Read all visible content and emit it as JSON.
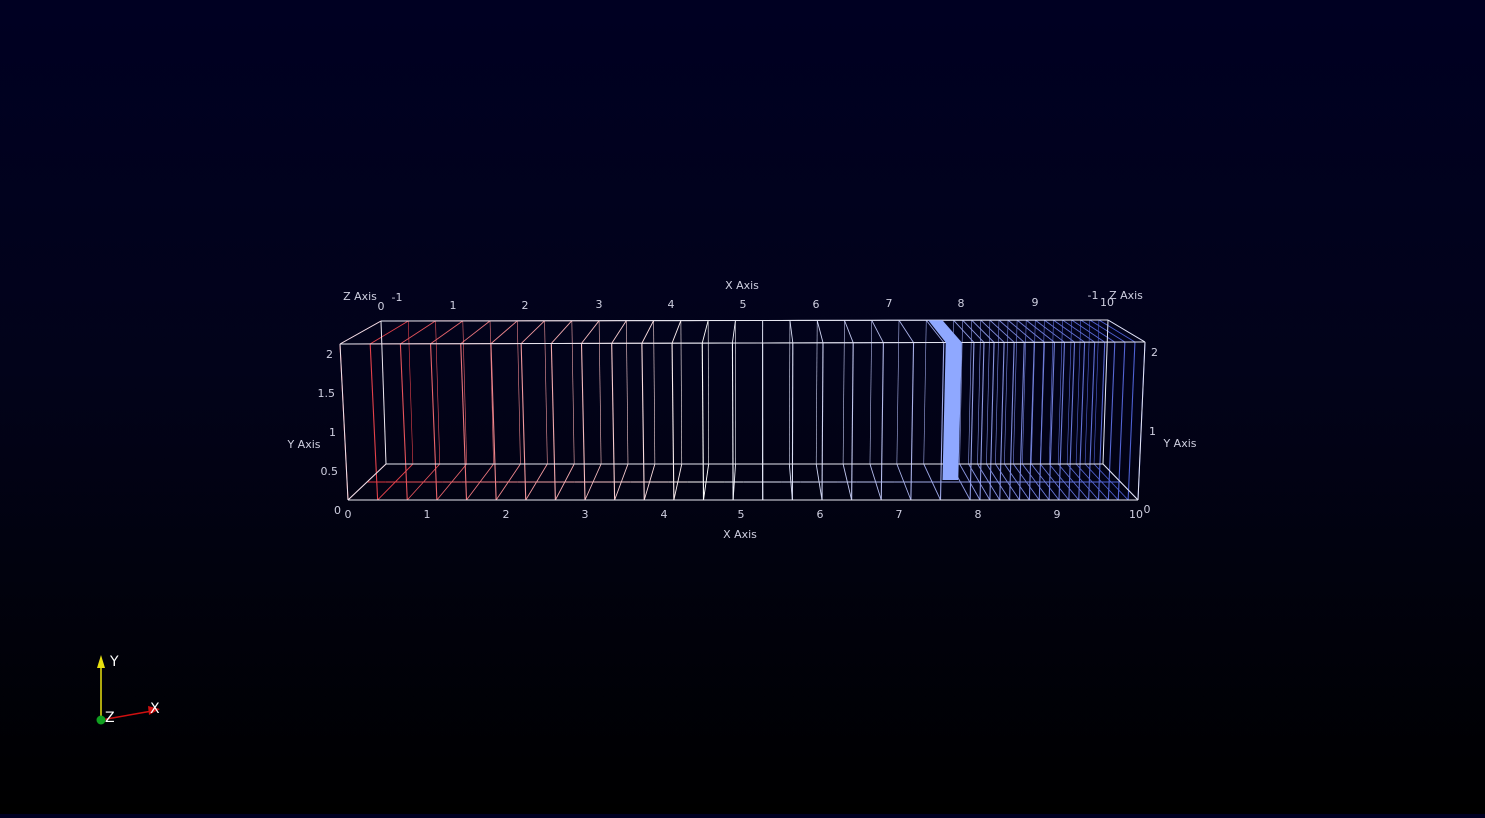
{
  "scene": {
    "background_top": "#000022",
    "background_bottom": "#000000"
  },
  "axes_grid": {
    "x_axis_title_top": "X Axis",
    "x_axis_title_bottom": "X Axis",
    "y_axis_title_left": "Y Axis",
    "y_axis_title_right": "Y Axis",
    "z_axis_title_left": "Z Axis",
    "z_axis_title_right": "Z Axis",
    "x_ticks": [
      "0",
      "1",
      "2",
      "3",
      "4",
      "5",
      "6",
      "7",
      "8",
      "9",
      "10"
    ],
    "y_ticks_left": [
      "0",
      "0.5",
      "1",
      "1.5",
      "2"
    ],
    "y_ticks_right": [
      "0",
      "1",
      "2"
    ],
    "z_ticks": [
      "-1",
      "0"
    ],
    "x_range": [
      0,
      10
    ],
    "y_range": [
      0,
      2
    ],
    "z_range": [
      -1,
      0
    ]
  },
  "mesh": {
    "color_start": "#e0303a",
    "color_mid": "#ffffff",
    "color_end": "#4a5cd0",
    "highlight_color": "#8fa8ff",
    "highlight_x": [
      7.5,
      7.75
    ]
  },
  "orientation_widget": {
    "x_label": "X",
    "y_label": "Y",
    "z_label": "Z",
    "x_color": "#d01010",
    "y_color": "#e8e010",
    "z_color": "#10a020"
  }
}
